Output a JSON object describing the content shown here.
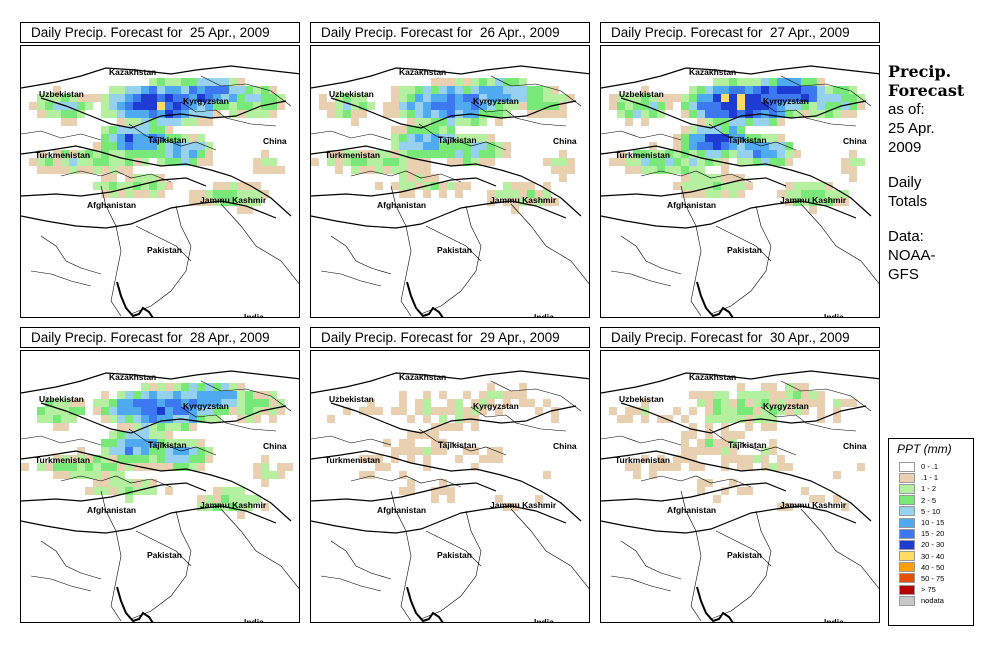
{
  "panels": [
    {
      "title": "Daily Precip. Forecast for  25 Apr., 2009",
      "intensity": 0.9
    },
    {
      "title": "Daily Precip. Forecast for  26 Apr., 2009",
      "intensity": 0.75
    },
    {
      "title": "Daily Precip. Forecast for  27 Apr., 2009",
      "intensity": 1.0
    },
    {
      "title": "Daily Precip. Forecast for  28 Apr., 2009",
      "intensity": 0.8
    },
    {
      "title": "Daily Precip. Forecast for  29 Apr., 2009",
      "intensity": 0.2
    },
    {
      "title": "Daily Precip. Forecast for  30 Apr., 2009",
      "intensity": 0.3
    }
  ],
  "map_labels": {
    "kazakhstan": "Kazakhstan",
    "uzbekistan": "Uzbekistan",
    "kyrgyzstan": "Kyrgyzstan",
    "tajikistan": "Tajikistan",
    "china": "China",
    "turkmenistan": "Turkmenistan",
    "afghanistan": "Afghanistan",
    "jammu_kashmir": "Jammu Kashmir",
    "pakistan": "Pakistan",
    "india": "India"
  },
  "side": {
    "title_line1": "Precip.",
    "title_line2": "Forecast",
    "as_of_line1": "as of:",
    "as_of_line2": "25 Apr.",
    "as_of_line3": "2009",
    "totals_line1": "Daily",
    "totals_line2": "Totals",
    "data_line1": "Data:",
    "data_line2": "NOAA-",
    "data_line3": "GFS"
  },
  "legend": {
    "title": "PPT (mm)",
    "items": [
      {
        "label": "0 - .1",
        "color": "#ffffff"
      },
      {
        "label": ".1 - 1",
        "color": "#e8d0b0"
      },
      {
        "label": "1 - 2",
        "color": "#b4f0a0"
      },
      {
        "label": "2 - 5",
        "color": "#78e878"
      },
      {
        "label": "5 - 10",
        "color": "#96d2f0"
      },
      {
        "label": "10 - 15",
        "color": "#50aaf0"
      },
      {
        "label": "15 - 20",
        "color": "#3c78f0"
      },
      {
        "label": "20 - 30",
        "color": "#1e3cd2"
      },
      {
        "label": "30 - 40",
        "color": "#ffdc64"
      },
      {
        "label": "40 - 50",
        "color": "#ffa000"
      },
      {
        "label": "50 - 75",
        "color": "#e65000"
      },
      {
        "label": "> 75",
        "color": "#b40000"
      },
      {
        "label": "nodata",
        "color": "#c8c8c8"
      }
    ]
  }
}
